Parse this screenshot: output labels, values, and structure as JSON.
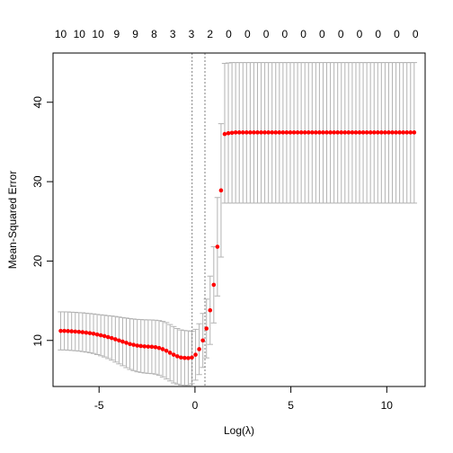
{
  "chart_data": {
    "type": "scatter",
    "title": "",
    "xlabel": "Log(λ)",
    "ylabel": "Mean-Squared Error",
    "xlim": [
      -7.4,
      12.0
    ],
    "ylim": [
      4.2,
      46.2
    ],
    "x_ticks": [
      -5,
      0,
      5,
      10
    ],
    "y_ticks": [
      10,
      20,
      30,
      40
    ],
    "x_tick_labels": [
      "-5",
      "0",
      "5",
      "10"
    ],
    "y_tick_labels": [
      "10",
      "20",
      "30",
      "40"
    ],
    "top_axis_labels": [
      "10",
      "10",
      "10",
      "9",
      "9",
      "8",
      "3",
      "3",
      "2",
      "0",
      "0",
      "0",
      "0",
      "0",
      "0",
      "0",
      "0",
      "0",
      "0",
      "0"
    ],
    "vlines": [
      -0.15,
      0.52
    ],
    "grid": false,
    "legend": "none",
    "colors": {
      "points": "#ff0000",
      "errorbars": "#b3b3b3",
      "vlines": "#808080",
      "axes": "#000000"
    },
    "series": [
      {
        "x": [
          -7.0,
          -6.81,
          -6.62,
          -6.43,
          -6.24,
          -6.05,
          -5.86,
          -5.67,
          -5.48,
          -5.29,
          -5.1,
          -4.91,
          -4.72,
          -4.53,
          -4.34,
          -4.15,
          -3.96,
          -3.77,
          -3.58,
          -3.39,
          -3.2,
          -3.01,
          -2.82,
          -2.63,
          -2.44,
          -2.25,
          -2.06,
          -1.87,
          -1.68,
          -1.49,
          -1.3,
          -1.11,
          -0.92,
          -0.73,
          -0.54,
          -0.35,
          -0.16,
          0.03,
          0.22,
          0.41,
          0.6,
          0.79,
          0.98,
          1.17,
          1.36,
          1.55,
          1.74,
          1.93,
          2.12,
          2.31,
          2.5,
          2.69,
          2.88,
          3.07,
          3.26,
          3.45,
          3.64,
          3.83,
          4.02,
          4.21,
          4.4,
          4.59,
          4.78,
          4.97,
          5.16,
          5.35,
          5.54,
          5.73,
          5.92,
          6.11,
          6.3,
          6.49,
          6.68,
          6.87,
          7.06,
          7.25,
          7.44,
          7.63,
          7.82,
          8.01,
          8.2,
          8.39,
          8.58,
          8.77,
          8.96,
          9.15,
          9.34,
          9.53,
          9.72,
          9.91,
          10.1,
          10.29,
          10.48,
          10.67,
          10.86,
          11.05,
          11.24,
          11.43
        ],
        "y": [
          11.2,
          11.2,
          11.18,
          11.15,
          11.12,
          11.08,
          11.04,
          10.98,
          10.92,
          10.85,
          10.75,
          10.65,
          10.55,
          10.42,
          10.3,
          10.15,
          10.0,
          9.85,
          9.7,
          9.55,
          9.45,
          9.35,
          9.3,
          9.25,
          9.22,
          9.2,
          9.15,
          9.05,
          8.9,
          8.7,
          8.45,
          8.2,
          8.0,
          7.85,
          7.8,
          7.78,
          7.85,
          8.2,
          8.9,
          10.0,
          11.5,
          13.8,
          17.0,
          21.8,
          28.9,
          36.0,
          36.1,
          36.15,
          36.2,
          36.2,
          36.2,
          36.2,
          36.2,
          36.2,
          36.2,
          36.2,
          36.2,
          36.2,
          36.2,
          36.2,
          36.2,
          36.2,
          36.2,
          36.2,
          36.2,
          36.2,
          36.2,
          36.2,
          36.2,
          36.2,
          36.2,
          36.2,
          36.2,
          36.2,
          36.2,
          36.2,
          36.2,
          36.2,
          36.2,
          36.2,
          36.2,
          36.2,
          36.2,
          36.2,
          36.2,
          36.2,
          36.2,
          36.2,
          36.2,
          36.2,
          36.2,
          36.2,
          36.2,
          36.2,
          36.2,
          36.2,
          36.2,
          36.2
        ],
        "lower": [
          8.8,
          8.8,
          8.77,
          8.74,
          8.7,
          8.66,
          8.6,
          8.53,
          8.45,
          8.36,
          8.22,
          8.07,
          7.92,
          7.72,
          7.52,
          7.28,
          7.05,
          6.82,
          6.58,
          6.35,
          6.2,
          6.05,
          5.97,
          5.9,
          5.85,
          5.82,
          5.75,
          5.6,
          5.4,
          5.15,
          4.9,
          4.65,
          4.5,
          4.38,
          4.35,
          4.35,
          4.55,
          5.0,
          5.7,
          6.6,
          7.8,
          9.5,
          12.2,
          15.6,
          20.5,
          27.3,
          27.3,
          27.3,
          27.3,
          27.3,
          27.3,
          27.3,
          27.3,
          27.3,
          27.3,
          27.3,
          27.3,
          27.3,
          27.3,
          27.3,
          27.3,
          27.3,
          27.3,
          27.3,
          27.3,
          27.3,
          27.3,
          27.3,
          27.3,
          27.3,
          27.3,
          27.3,
          27.3,
          27.3,
          27.3,
          27.3,
          27.3,
          27.3,
          27.3,
          27.3,
          27.3,
          27.3,
          27.3,
          27.3,
          27.3,
          27.3,
          27.3,
          27.3,
          27.3,
          27.3,
          27.3,
          27.3,
          27.3,
          27.3,
          27.3,
          27.3,
          27.3,
          27.3
        ],
        "upper": [
          13.6,
          13.6,
          13.59,
          13.56,
          13.54,
          13.5,
          13.48,
          13.43,
          13.39,
          13.34,
          13.28,
          13.23,
          13.18,
          13.12,
          13.08,
          13.02,
          12.95,
          12.88,
          12.82,
          12.75,
          12.7,
          12.65,
          12.63,
          12.6,
          12.59,
          12.58,
          12.55,
          12.5,
          12.4,
          12.25,
          12.0,
          11.75,
          11.5,
          11.32,
          11.25,
          11.21,
          11.15,
          11.4,
          12.1,
          13.4,
          15.2,
          18.1,
          21.8,
          28.0,
          37.3,
          44.9,
          44.95,
          45.0,
          45.0,
          45.0,
          45.0,
          45.0,
          45.0,
          45.0,
          45.0,
          45.0,
          45.0,
          45.0,
          45.0,
          45.0,
          45.0,
          45.0,
          45.0,
          45.0,
          45.0,
          45.0,
          45.0,
          45.0,
          45.0,
          45.0,
          45.0,
          45.0,
          45.0,
          45.0,
          45.0,
          45.0,
          45.0,
          45.0,
          45.0,
          45.0,
          45.0,
          45.0,
          45.0,
          45.0,
          45.0,
          45.0,
          45.0,
          45.0,
          45.0,
          45.0,
          45.0,
          45.0,
          45.0,
          45.0,
          45.0,
          45.0,
          45.0,
          45.0
        ]
      }
    ]
  }
}
